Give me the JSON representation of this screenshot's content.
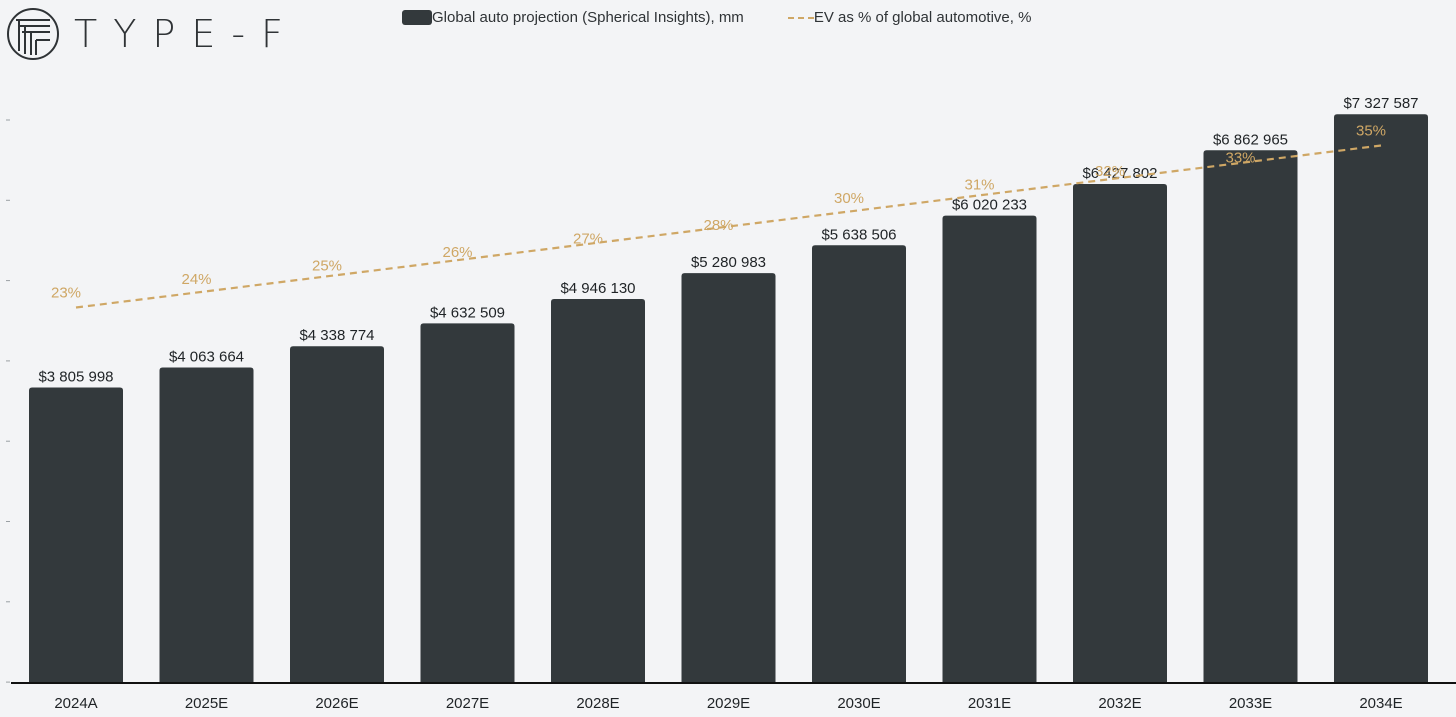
{
  "brand": {
    "name": "TYPE-F",
    "logo_icon": "type-f-logo-icon"
  },
  "legend": {
    "bar_label": "Global auto projection (Spherical Insights), mm",
    "line_label": "EV as % of global automotive, %"
  },
  "colors": {
    "bar": "#33393c",
    "line": "#cfa765",
    "text": "#1f2326",
    "background": "#f3f4f6",
    "axis": "#111111"
  },
  "chart_data": {
    "type": "bar",
    "title": "",
    "xlabel": "",
    "ylabel": "",
    "ylim": [
      0,
      8000000
    ],
    "categories": [
      "2024A",
      "2025E",
      "2026E",
      "2027E",
      "2028E",
      "2029E",
      "2030E",
      "2031E",
      "2032E",
      "2033E",
      "2034E"
    ],
    "series": [
      {
        "name": "Global auto projection (Spherical Insights), mm",
        "type": "bar",
        "values": [
          3805998,
          4063664,
          4338774,
          4632509,
          4946130,
          5280983,
          5638506,
          6020233,
          6427802,
          6862965,
          7327587
        ],
        "labels": [
          "$3 805 998",
          "$4 063 664",
          "$4 338 774",
          "$4 632 509",
          "$4 946 130",
          "$5 280 983",
          "$5 638 506",
          "$6 020 233",
          "$6 427 802",
          "$6 862 965",
          "$7 327 587"
        ]
      },
      {
        "name": "EV as % of global automotive, %",
        "type": "line",
        "style": "dashed",
        "values": [
          23,
          24,
          25,
          26,
          27,
          28,
          30,
          31,
          32,
          33,
          35
        ],
        "labels": [
          "23%",
          "24%",
          "25%",
          "26%",
          "27%",
          "28%",
          "30%",
          "31%",
          "32%",
          "33%",
          "35%"
        ]
      }
    ]
  }
}
